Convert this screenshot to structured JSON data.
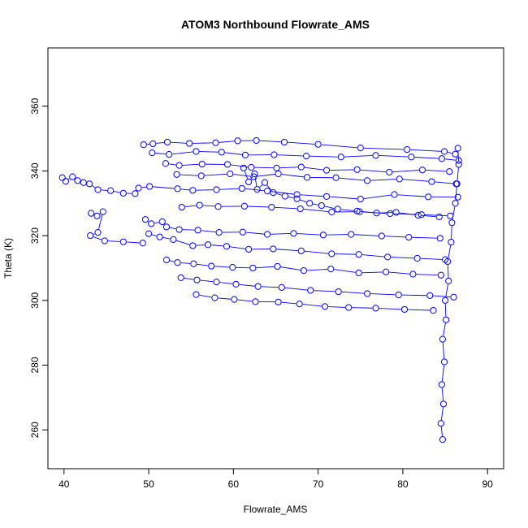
{
  "chart_data": {
    "type": "scatter",
    "title": "ATOM3 Northbound Flowrate_AMS",
    "xlabel": "Flowrate_AMS",
    "ylabel": "Theta (K)",
    "xlim": [
      38.1,
      91.9
    ],
    "ylim": [
      248,
      378
    ],
    "x_ticks": [
      40,
      50,
      60,
      70,
      80,
      90
    ],
    "y_ticks": [
      260,
      280,
      300,
      320,
      340,
      360
    ],
    "grid": false,
    "legend": "none",
    "plot_style": "points connected by lines (type b)",
    "marker": "open-circle",
    "color": "#0000ff",
    "series": [
      {
        "points": [
          [
            39.8,
            337.9
          ],
          [
            40.2,
            336.8
          ],
          [
            41.0,
            338.2
          ],
          [
            41.6,
            337.0
          ],
          [
            42.3,
            336.4
          ],
          [
            43.0,
            336.0
          ],
          [
            44.0,
            334.2
          ],
          [
            45.5,
            333.9
          ],
          [
            47.0,
            333.1
          ],
          [
            48.4,
            333.0
          ]
        ]
      },
      {
        "points": [
          [
            43.2,
            326.9
          ],
          [
            43.9,
            326.1
          ],
          [
            44.6,
            327.4
          ],
          [
            44.0,
            321.0
          ],
          [
            43.1,
            320.0
          ],
          [
            44.8,
            318.4
          ],
          [
            47.0,
            318.1
          ],
          [
            49.3,
            317.7
          ]
        ]
      },
      {
        "points": [
          [
            48.8,
            334.7
          ],
          [
            50.1,
            335.2
          ],
          [
            53.4,
            334.5
          ],
          [
            55.2,
            334.0
          ],
          [
            58.0,
            334.2
          ],
          [
            61.0,
            334.6
          ],
          [
            64.0,
            333.8
          ],
          [
            67.5,
            332.7
          ],
          [
            71.0,
            332.1
          ],
          [
            75.0,
            331.3
          ],
          [
            79.0,
            332.7
          ],
          [
            83.0,
            332.0
          ],
          [
            86.5,
            331.9
          ]
        ]
      },
      {
        "points": [
          [
            49.4,
            348.1
          ],
          [
            50.5,
            348.4
          ],
          [
            52.2,
            348.9
          ],
          [
            54.8,
            348.5
          ],
          [
            57.9,
            348.7
          ],
          [
            60.5,
            349.3
          ],
          [
            62.7,
            349.4
          ],
          [
            66.0,
            348.9
          ],
          [
            70.0,
            348.2
          ],
          [
            75.0,
            347.1
          ],
          [
            80.5,
            346.6
          ],
          [
            84.9,
            346.0
          ],
          [
            86.2,
            345.2
          ]
        ]
      },
      {
        "points": [
          [
            50.4,
            345.6
          ],
          [
            52.4,
            345.1
          ],
          [
            55.6,
            346.0
          ],
          [
            58.6,
            345.8
          ],
          [
            61.4,
            344.9
          ],
          [
            64.8,
            345.0
          ],
          [
            68.6,
            344.6
          ],
          [
            72.7,
            344.3
          ],
          [
            76.8,
            344.8
          ],
          [
            81.0,
            344.3
          ],
          [
            84.6,
            343.8
          ],
          [
            86.6,
            343.2
          ]
        ]
      },
      {
        "points": [
          [
            52.0,
            342.3
          ],
          [
            53.6,
            341.7
          ],
          [
            56.3,
            342.1
          ],
          [
            59.3,
            342.0
          ],
          [
            62.1,
            341.1
          ],
          [
            65.1,
            340.9
          ],
          [
            68.0,
            341.2
          ],
          [
            71.0,
            340.2
          ],
          [
            74.6,
            340.4
          ],
          [
            78.4,
            339.6
          ],
          [
            82.3,
            340.3
          ],
          [
            85.5,
            339.8
          ]
        ]
      },
      {
        "points": [
          [
            53.3,
            338.9
          ],
          [
            56.2,
            338.5
          ],
          [
            59.6,
            339.1
          ],
          [
            62.4,
            338.2
          ],
          [
            65.3,
            339.1
          ],
          [
            68.7,
            338.0
          ],
          [
            72.1,
            337.9
          ],
          [
            75.8,
            337.0
          ],
          [
            79.6,
            337.5
          ],
          [
            83.4,
            336.7
          ],
          [
            86.3,
            336.0
          ]
        ]
      },
      {
        "points": [
          [
            53.9,
            328.8
          ],
          [
            56.0,
            329.4
          ],
          [
            58.2,
            329.0
          ],
          [
            61.3,
            329.1
          ],
          [
            64.5,
            328.8
          ],
          [
            67.9,
            328.3
          ],
          [
            71.6,
            327.3
          ],
          [
            74.9,
            327.4
          ],
          [
            78.5,
            326.8
          ],
          [
            82.2,
            326.5
          ],
          [
            85.6,
            326.1
          ]
        ]
      },
      {
        "points": [
          [
            49.6,
            325.0
          ],
          [
            50.3,
            323.7
          ],
          [
            51.6,
            324.3
          ],
          [
            52.1,
            322.7
          ],
          [
            53.6,
            321.9
          ],
          [
            55.8,
            321.7
          ],
          [
            58.3,
            321.0
          ],
          [
            61.1,
            321.1
          ],
          [
            64.0,
            320.4
          ],
          [
            67.1,
            320.7
          ],
          [
            70.6,
            320.2
          ],
          [
            73.9,
            320.4
          ],
          [
            77.5,
            319.9
          ],
          [
            80.7,
            319.5
          ],
          [
            84.4,
            319.2
          ]
        ]
      },
      {
        "points": [
          [
            50.0,
            320.6
          ],
          [
            51.3,
            319.6
          ],
          [
            52.9,
            318.8
          ],
          [
            55.2,
            316.9
          ],
          [
            57.0,
            317.2
          ],
          [
            59.2,
            316.7
          ],
          [
            61.8,
            315.8
          ],
          [
            64.7,
            315.9
          ],
          [
            68.0,
            315.3
          ],
          [
            71.6,
            314.4
          ],
          [
            74.8,
            314.2
          ],
          [
            78.2,
            313.4
          ],
          [
            81.7,
            313.0
          ],
          [
            85.0,
            312.6
          ]
        ]
      },
      {
        "points": [
          [
            52.1,
            312.5
          ],
          [
            53.4,
            311.7
          ],
          [
            55.3,
            311.3
          ],
          [
            57.4,
            310.6
          ],
          [
            59.9,
            310.2
          ],
          [
            62.3,
            310.0
          ],
          [
            65.2,
            310.5
          ],
          [
            68.3,
            309.2
          ],
          [
            71.5,
            309.7
          ],
          [
            74.8,
            308.5
          ],
          [
            78.0,
            308.8
          ],
          [
            81.2,
            308.1
          ],
          [
            84.5,
            307.8
          ]
        ]
      },
      {
        "points": [
          [
            53.8,
            307.0
          ],
          [
            55.7,
            306.3
          ],
          [
            58.0,
            305.7
          ],
          [
            60.3,
            305.0
          ],
          [
            62.9,
            304.3
          ],
          [
            65.7,
            304.0
          ],
          [
            69.1,
            303.1
          ],
          [
            72.4,
            302.7
          ],
          [
            75.8,
            302.1
          ],
          [
            79.5,
            301.7
          ],
          [
            83.2,
            301.5
          ],
          [
            86.0,
            301.0
          ]
        ]
      },
      {
        "points": [
          [
            55.6,
            301.8
          ],
          [
            57.8,
            300.8
          ],
          [
            60.1,
            300.3
          ],
          [
            62.6,
            299.6
          ],
          [
            65.3,
            299.5
          ],
          [
            67.8,
            298.9
          ],
          [
            70.8,
            298.1
          ],
          [
            73.6,
            297.8
          ],
          [
            76.8,
            297.6
          ],
          [
            80.2,
            297.2
          ],
          [
            83.6,
            296.9
          ]
        ]
      },
      {
        "points": [
          [
            61.2,
            340.9
          ],
          [
            61.8,
            336.6
          ],
          [
            62.5,
            339.1
          ],
          [
            62.8,
            334.3
          ],
          [
            63.7,
            336.4
          ],
          [
            64.7,
            333.3
          ],
          [
            66.1,
            332.2
          ],
          [
            67.5,
            331.4
          ],
          [
            69.0,
            330.0
          ],
          [
            70.4,
            329.3
          ],
          [
            72.3,
            328.2
          ],
          [
            74.6,
            327.6
          ],
          [
            76.9,
            327.0
          ],
          [
            79.2,
            327.2
          ],
          [
            81.8,
            326.3
          ],
          [
            84.3,
            325.8
          ]
        ]
      },
      {
        "points": [
          [
            84.7,
            257.0
          ],
          [
            84.5,
            262.0
          ],
          [
            84.8,
            268.0
          ],
          [
            84.6,
            274.0
          ],
          [
            84.9,
            281.0
          ],
          [
            84.7,
            288.0
          ],
          [
            85.1,
            294.0
          ],
          [
            85.0,
            300.0
          ],
          [
            85.4,
            306.0
          ],
          [
            85.3,
            312.0
          ],
          [
            85.7,
            318.0
          ],
          [
            85.8,
            324.0
          ],
          [
            86.2,
            330.0
          ],
          [
            86.4,
            336.0
          ],
          [
            86.6,
            342.0
          ],
          [
            86.5,
            347.0
          ]
        ]
      }
    ]
  }
}
